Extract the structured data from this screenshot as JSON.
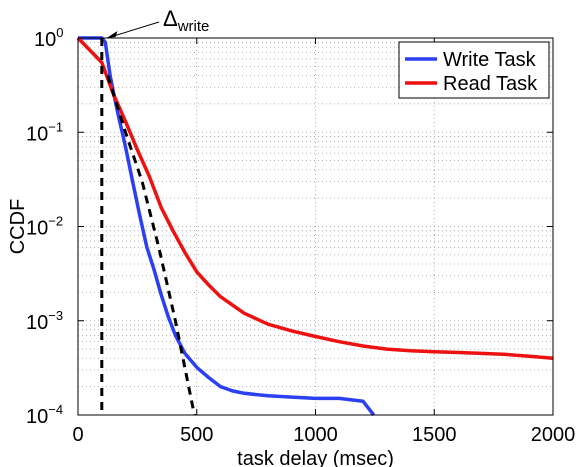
{
  "chart_data": {
    "type": "line",
    "title": "",
    "xlabel": "task delay (msec)",
    "ylabel": "CCDF",
    "xlim": [
      0,
      2000
    ],
    "ylim": [
      0.0001,
      1
    ],
    "yscale": "log",
    "grid": true,
    "legend_position": "top-right",
    "x_ticks": [
      0,
      500,
      1000,
      1500,
      2000
    ],
    "x_tick_labels": [
      "0",
      "500",
      "1000",
      "1500",
      "2000"
    ],
    "y_ticks": [
      0.0001,
      0.001,
      0.01,
      0.1,
      1
    ],
    "y_tick_labels": [
      {
        "base": "10",
        "exp": "−4"
      },
      {
        "base": "10",
        "exp": "−3"
      },
      {
        "base": "10",
        "exp": "−2"
      },
      {
        "base": "10",
        "exp": "−1"
      },
      {
        "base": "10",
        "exp": "0"
      }
    ],
    "series": [
      {
        "name": "Write Task",
        "color": "#2b3ff5",
        "style": "solid",
        "x": [
          0,
          100,
          115,
          125,
          135,
          150,
          170,
          200,
          230,
          260,
          290,
          320,
          350,
          380,
          410,
          450,
          500,
          550,
          600,
          650,
          700,
          800,
          900,
          1000,
          1100,
          1200,
          1245
        ],
        "y": [
          1,
          1,
          0.9,
          0.6,
          0.4,
          0.26,
          0.15,
          0.07,
          0.03,
          0.013,
          0.006,
          0.0035,
          0.0019,
          0.0011,
          0.0007,
          0.00045,
          0.00032,
          0.00025,
          0.0002,
          0.00018,
          0.00017,
          0.00016,
          0.000155,
          0.00015,
          0.00015,
          0.00014,
          0.0001
        ]
      },
      {
        "name": "Read Task",
        "color": "#ee1111",
        "style": "solid",
        "x": [
          0,
          100,
          150,
          200,
          250,
          300,
          350,
          400,
          450,
          500,
          550,
          600,
          700,
          800,
          900,
          1000,
          1100,
          1200,
          1300,
          1400,
          1500,
          1600,
          1700,
          1800,
          1900,
          2000
        ],
        "y": [
          1,
          0.55,
          0.25,
          0.13,
          0.065,
          0.034,
          0.016,
          0.009,
          0.0053,
          0.0033,
          0.0024,
          0.0018,
          0.0012,
          0.00092,
          0.00078,
          0.00068,
          0.0006,
          0.00054,
          0.0005,
          0.00048,
          0.00047,
          0.00046,
          0.00045,
          0.00044,
          0.00042,
          0.0004
        ]
      },
      {
        "name": "",
        "color": "#000000",
        "style": "dashed",
        "x": [
          100,
          100
        ],
        "y": [
          1,
          0.0001
        ]
      },
      {
        "name": "",
        "color": "#000000",
        "style": "dashed",
        "x": [
          125,
          200,
          270,
          340,
          410,
          490
        ],
        "y": [
          0.4,
          0.1,
          0.03,
          0.006,
          0.001,
          0.0001
        ]
      }
    ],
    "annotations": [
      {
        "text": "Δ",
        "subscript": "write",
        "arrow_to": {
          "x": 120,
          "y": 1
        }
      }
    ]
  }
}
